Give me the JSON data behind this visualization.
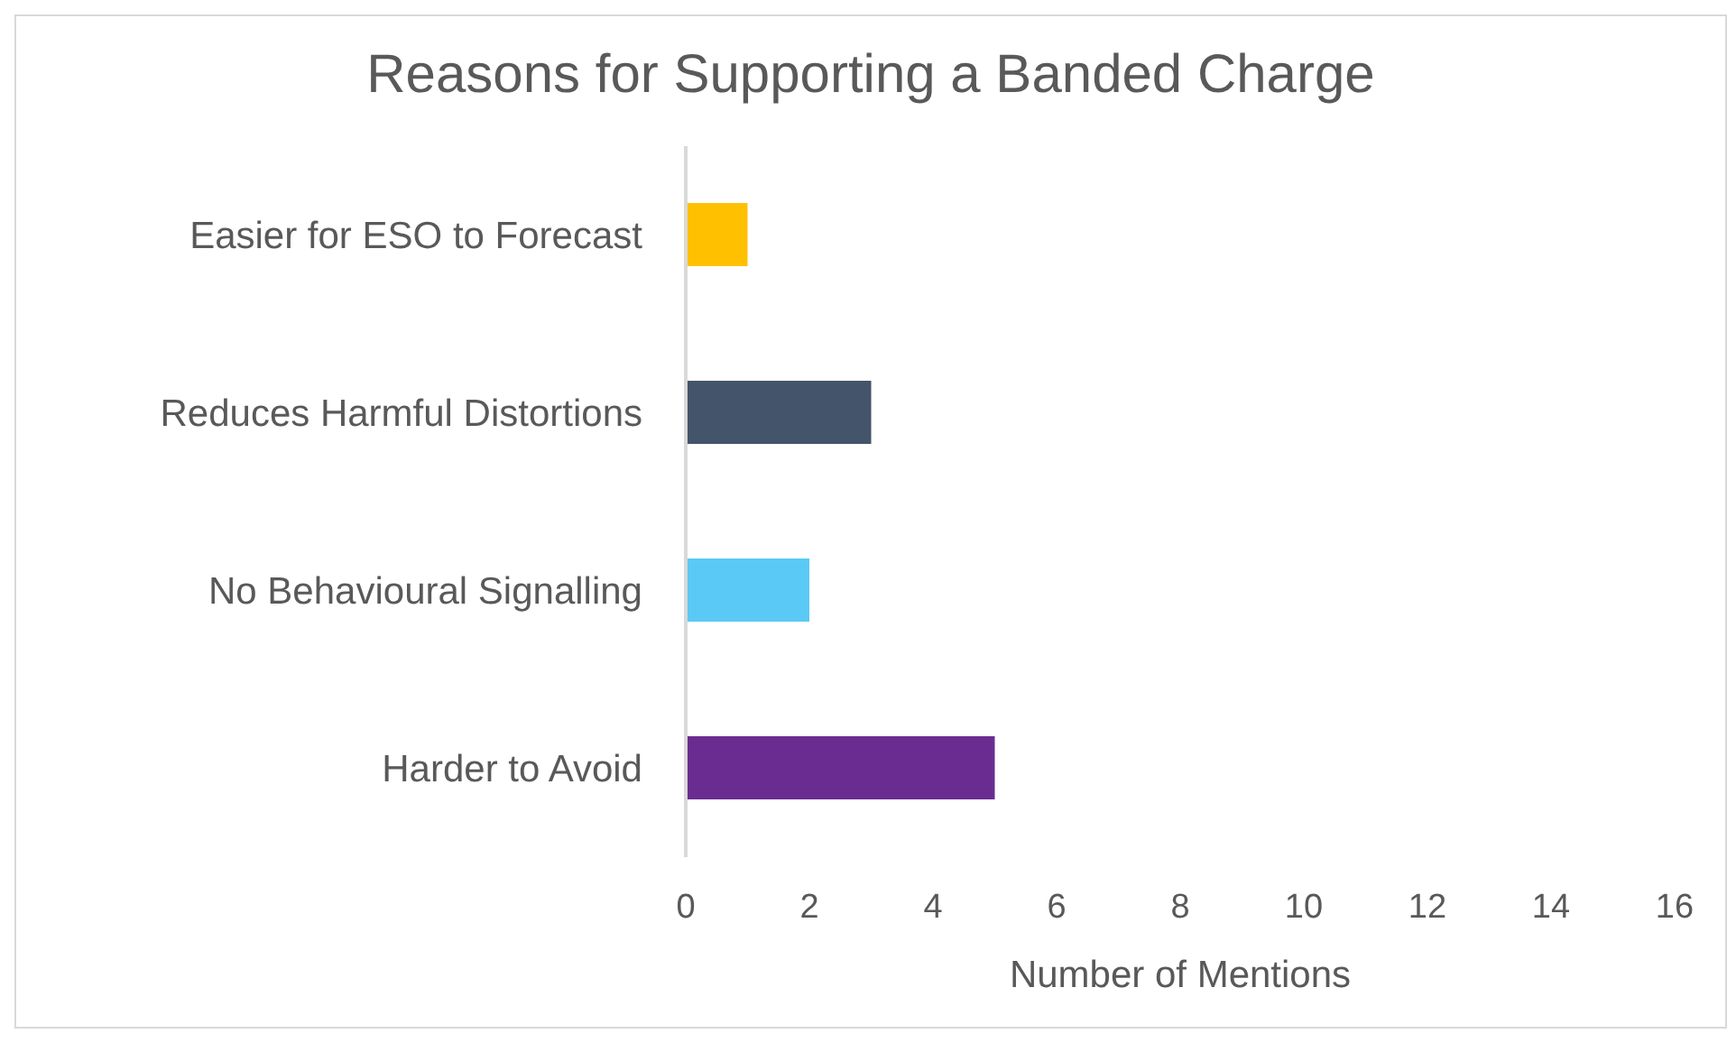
{
  "chart_data": {
    "type": "bar",
    "orientation": "horizontal",
    "title": "Reasons for Supporting a Banded Charge",
    "xlabel": "Number of Mentions",
    "categories": [
      "Easier for ESO to Forecast",
      "Reduces Harmful Distortions",
      "No Behavioural Signalling",
      "Harder to Avoid"
    ],
    "values": [
      1,
      3,
      2,
      5
    ],
    "colors": [
      "#ffc000",
      "#44546a",
      "#5bc9f5",
      "#6a2c91"
    ],
    "xlim": [
      0,
      16
    ],
    "xticks": [
      0,
      2,
      4,
      6,
      8,
      10,
      12,
      14,
      16
    ]
  }
}
